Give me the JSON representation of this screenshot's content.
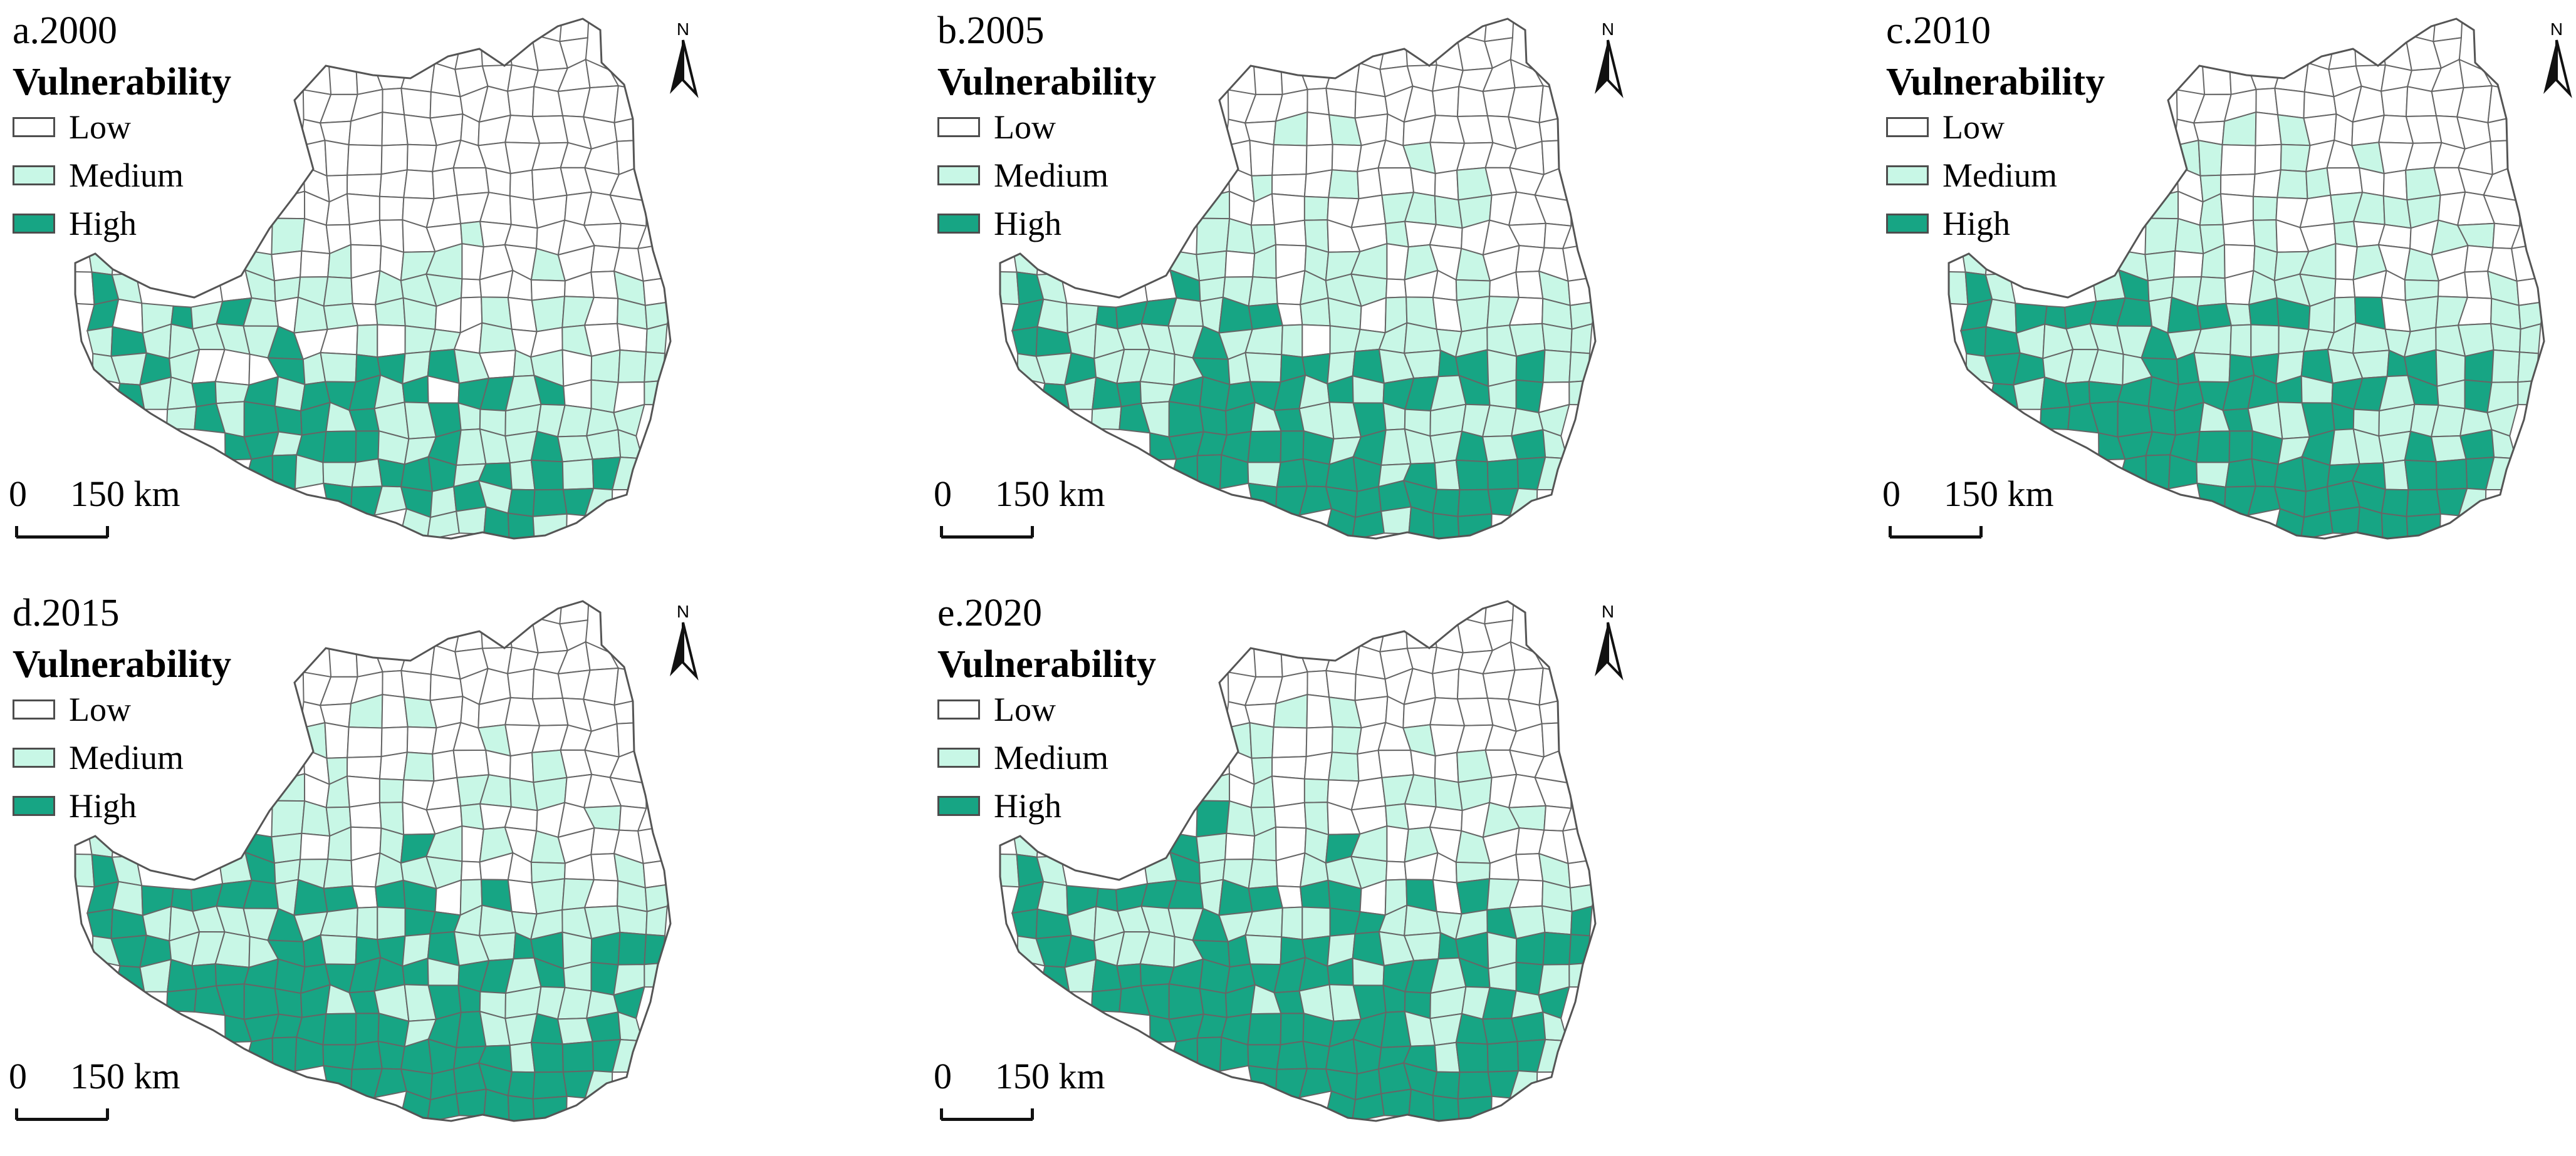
{
  "legend": {
    "title": "Vulnerability",
    "classes": [
      {
        "label": "Low",
        "color": "#ffffff"
      },
      {
        "label": "Medium",
        "color": "#c8f7e6"
      },
      {
        "label": "High",
        "color": "#17a584"
      }
    ]
  },
  "colors": {
    "boundary": "#666666",
    "low": "#ffffff",
    "medium": "#c8f7e6",
    "high": "#17a584"
  },
  "north_arrow": {
    "label": "N",
    "icon": "north-arrow-icon"
  },
  "scale_bar": {
    "start": "0",
    "end": "150 km"
  },
  "panels": [
    {
      "id": "a",
      "title": "a.2000",
      "year": "2000",
      "high_share": 0.18,
      "medium_share": 0.34
    },
    {
      "id": "b",
      "title": "b.2005",
      "year": "2005",
      "high_share": 0.26,
      "medium_share": 0.39
    },
    {
      "id": "c",
      "title": "c.2010",
      "year": "2010",
      "high_share": 0.31,
      "medium_share": 0.38
    },
    {
      "id": "d",
      "title": "d.2015",
      "year": "2015",
      "high_share": 0.34,
      "medium_share": 0.33
    },
    {
      "id": "e",
      "title": "e.2020",
      "year": "2020",
      "high_share": 0.37,
      "medium_share": 0.31
    }
  ]
}
